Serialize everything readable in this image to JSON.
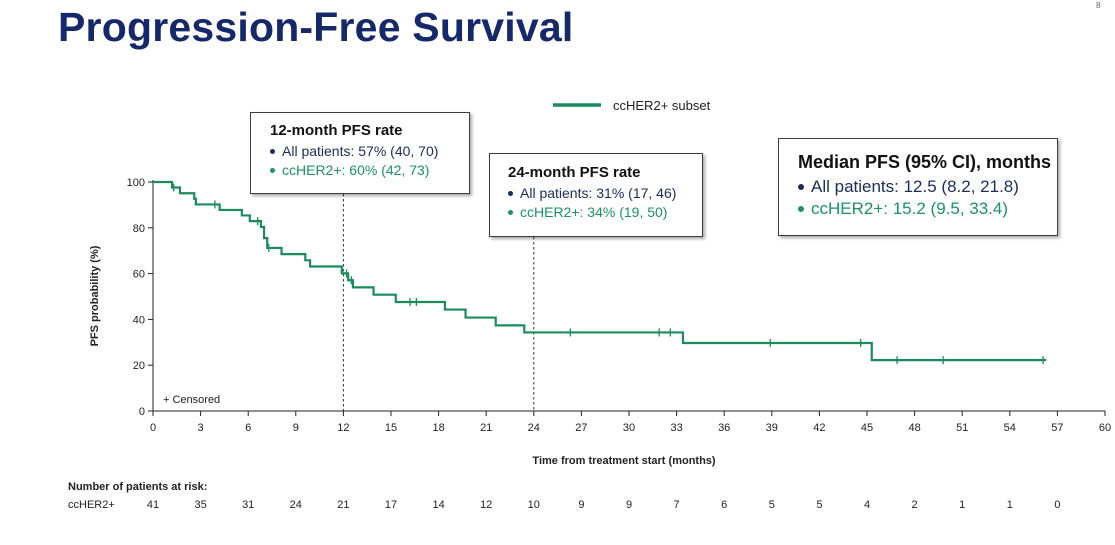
{
  "slide": {
    "title": "Progression-Free Survival",
    "page_number": "8"
  },
  "legend": {
    "series_label": "ccHER2+ subset",
    "censored_label": "+ Censored"
  },
  "annotations": {
    "month12": {
      "title": "12-month PFS rate",
      "all_patients": "All patients: 57% (40, 70)",
      "ccher2": "ccHER2+: 60% (42, 73)"
    },
    "month24": {
      "title": "24-month PFS rate",
      "all_patients": "All patients: 31% (17, 46)",
      "ccher2": "ccHER2+: 34% (19, 50)"
    },
    "median": {
      "title": "Median PFS (95% CI), months",
      "all_patients": "All patients: 12.5 (8.2, 21.8)",
      "ccher2": "ccHER2+: 15.2 (9.5, 33.4)"
    }
  },
  "risk_table": {
    "title": "Number of patients at risk:",
    "row_label": "ccHER2+",
    "timepoints": [
      0,
      3,
      6,
      9,
      12,
      15,
      18,
      21,
      24,
      27,
      30,
      33,
      36,
      39,
      42,
      45,
      48,
      51,
      54,
      57
    ],
    "values": [
      "41",
      "35",
      "31",
      "24",
      "21",
      "17",
      "14",
      "12",
      "10",
      "9",
      "9",
      "7",
      "6",
      "5",
      "5",
      "4",
      "2",
      "1",
      "1",
      "0"
    ]
  },
  "colors": {
    "title": "#14286b",
    "series": "#1a8c5c",
    "all_patients": "#1c2b5e",
    "ccher2": "#1a9460",
    "axis": "#222222"
  },
  "chart_data": {
    "type": "line",
    "subtype": "kaplan-meier-step",
    "title": "",
    "xlabel": "Time from treatment start (months)",
    "ylabel": "PFS probability (%)",
    "xlim": [
      0,
      60
    ],
    "ylim": [
      0,
      100
    ],
    "xticks": [
      0,
      3,
      6,
      9,
      12,
      15,
      18,
      21,
      24,
      27,
      30,
      33,
      36,
      39,
      42,
      45,
      48,
      51,
      54,
      57,
      60
    ],
    "yticks": [
      0,
      20,
      40,
      60,
      80,
      100
    ],
    "grid": false,
    "legend_position": "top-center",
    "reference_lines_x": [
      12,
      24
    ],
    "series": [
      {
        "name": "ccHER2+ subset",
        "steps": [
          [
            0,
            100
          ],
          [
            1.2,
            97.6
          ],
          [
            1.7,
            95.1
          ],
          [
            2.6,
            92.7
          ],
          [
            2.7,
            90.2
          ],
          [
            4.2,
            87.8
          ],
          [
            5.6,
            85.4
          ],
          [
            6.1,
            82.9
          ],
          [
            6.8,
            80.4
          ],
          [
            7.0,
            75.5
          ],
          [
            7.2,
            71.2
          ],
          [
            8.1,
            68.5
          ],
          [
            9.6,
            65.8
          ],
          [
            9.9,
            63.1
          ],
          [
            11.9,
            60.1
          ],
          [
            12.3,
            57.1
          ],
          [
            12.6,
            54.0
          ],
          [
            13.9,
            50.8
          ],
          [
            15.3,
            47.6
          ],
          [
            18.4,
            44.3
          ],
          [
            19.7,
            40.8
          ],
          [
            21.6,
            37.4
          ],
          [
            23.4,
            34.3
          ],
          [
            33.4,
            29.7
          ],
          [
            45.3,
            22.2
          ],
          [
            56.3,
            22.2
          ]
        ],
        "censored": [
          [
            1.3,
            97.6
          ],
          [
            3.9,
            90.2
          ],
          [
            6.6,
            82.9
          ],
          [
            7.3,
            71.2
          ],
          [
            12.2,
            60.1
          ],
          [
            12.5,
            57.1
          ],
          [
            16.2,
            47.6
          ],
          [
            16.6,
            47.6
          ],
          [
            26.3,
            34.3
          ],
          [
            31.9,
            34.3
          ],
          [
            32.6,
            34.3
          ],
          [
            38.9,
            29.7
          ],
          [
            44.6,
            29.7
          ],
          [
            46.9,
            22.2
          ],
          [
            49.8,
            22.2
          ],
          [
            56.1,
            22.2
          ]
        ]
      }
    ]
  }
}
